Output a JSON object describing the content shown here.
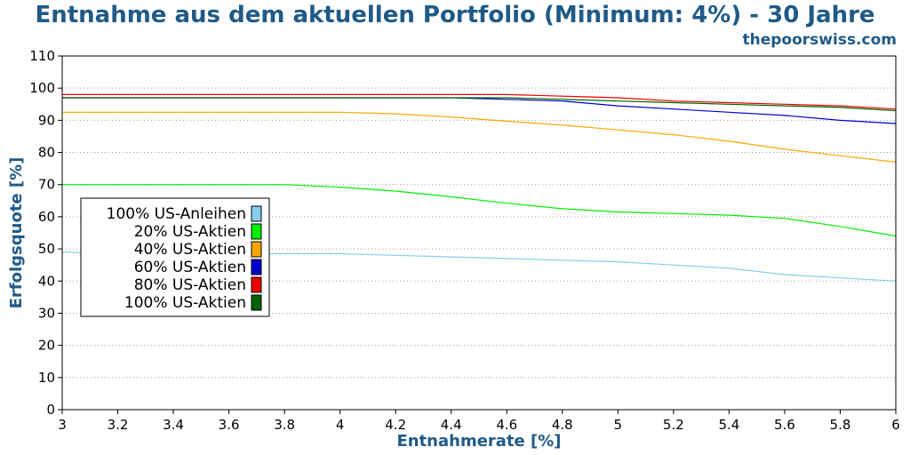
{
  "chart_data": {
    "type": "line",
    "title": "Entnahme aus dem aktuellen Portfolio (Minimum: 4%) - 30 Jahre",
    "source": "thepoorswiss.com",
    "xlabel": "Entnahmerate [%]",
    "ylabel": "Erfolgsquote [%]",
    "xlim": [
      3,
      6
    ],
    "ylim": [
      0,
      110
    ],
    "xticks": [
      "3",
      "3.2",
      "3.4",
      "3.6",
      "3.8",
      "4",
      "4.2",
      "4.4",
      "4.6",
      "4.8",
      "5",
      "5.2",
      "5.4",
      "5.6",
      "5.8",
      "6"
    ],
    "yticks": [
      "0",
      "10",
      "20",
      "30",
      "40",
      "50",
      "60",
      "70",
      "80",
      "90",
      "100",
      "110"
    ],
    "grid": "horizontal dotted",
    "legend_position": "center-left",
    "x": [
      3.0,
      3.2,
      3.4,
      3.6,
      3.8,
      4.0,
      4.2,
      4.4,
      4.6,
      4.8,
      5.0,
      5.2,
      5.4,
      5.6,
      5.8,
      6.0
    ],
    "series": [
      {
        "name": "100% US-Anleihen",
        "color": "#87ceeb",
        "values": [
          49,
          48.5,
          48.5,
          48.5,
          48.5,
          48.5,
          48,
          47.5,
          47,
          46.5,
          46,
          45,
          44,
          42,
          41,
          40
        ]
      },
      {
        "name": "20% US-Aktien",
        "color": "#00ee00",
        "values": [
          70,
          70,
          70,
          70,
          70,
          69.2,
          68,
          66.2,
          64.2,
          62.5,
          61.5,
          61,
          60.5,
          59.5,
          57,
          54
        ]
      },
      {
        "name": "40% US-Aktien",
        "color": "#ffa500",
        "values": [
          92.5,
          92.5,
          92.5,
          92.5,
          92.5,
          92.5,
          92,
          91,
          89.7,
          88.5,
          87,
          85.5,
          83.5,
          81,
          79,
          77
        ]
      },
      {
        "name": "60% US-Aktien",
        "color": "#0000cd",
        "values": [
          97,
          97,
          97,
          97,
          97,
          97,
          97,
          97,
          96.5,
          96,
          94.5,
          93.5,
          92.5,
          91.5,
          90,
          89
        ]
      },
      {
        "name": "80% US-Aktien",
        "color": "#ee0000",
        "values": [
          98,
          98,
          98,
          98,
          98,
          98,
          98,
          98,
          98,
          97.5,
          97,
          96,
          95.5,
          95,
          94.5,
          93.5
        ]
      },
      {
        "name": "100% US-Aktien",
        "color": "#006400",
        "values": [
          97,
          97,
          97,
          97,
          97,
          97,
          97,
          97,
          97,
          96.5,
          96,
          95.5,
          95,
          94.5,
          94,
          93
        ]
      }
    ]
  }
}
